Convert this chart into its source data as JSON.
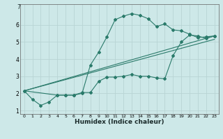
{
  "xlabel": "Humidex (Indice chaleur)",
  "xlim": [
    -0.5,
    23.5
  ],
  "ylim": [
    0.8,
    7.2
  ],
  "yticks": [
    1,
    2,
    3,
    4,
    5,
    6
  ],
  "xticks": [
    0,
    1,
    2,
    3,
    4,
    5,
    6,
    7,
    8,
    9,
    10,
    11,
    12,
    13,
    14,
    15,
    16,
    17,
    18,
    19,
    20,
    21,
    22,
    23
  ],
  "bg_color": "#cde8e8",
  "grid_color": "#b8d4d4",
  "line_color": "#2a7a6a",
  "line1_x": [
    0,
    1,
    2,
    3,
    4,
    5,
    6,
    7,
    8,
    9,
    10,
    11,
    12,
    13,
    14,
    15,
    16,
    17,
    18,
    19,
    20,
    21,
    22,
    23
  ],
  "line1_y": [
    2.15,
    1.65,
    1.3,
    1.5,
    1.9,
    1.9,
    1.9,
    2.0,
    3.65,
    4.4,
    5.3,
    6.3,
    6.5,
    6.65,
    6.55,
    6.35,
    5.9,
    6.05,
    5.7,
    5.65,
    5.45,
    5.25,
    5.3,
    5.35
  ],
  "line2_x": [
    0,
    4,
    5,
    6,
    7,
    8,
    9,
    10,
    11,
    12,
    13,
    14,
    15,
    16,
    17,
    18,
    19,
    20,
    21,
    22,
    23
  ],
  "line2_y": [
    2.15,
    1.9,
    1.9,
    1.9,
    2.05,
    2.05,
    2.7,
    2.95,
    2.95,
    3.0,
    3.1,
    3.0,
    3.0,
    2.9,
    2.85,
    4.2,
    5.0,
    5.4,
    5.35,
    5.2,
    5.35
  ],
  "line3_x": [
    0,
    23
  ],
  "line3_y": [
    2.15,
    5.35
  ],
  "line4_x": [
    0,
    23
  ],
  "line4_y": [
    2.15,
    5.15
  ]
}
